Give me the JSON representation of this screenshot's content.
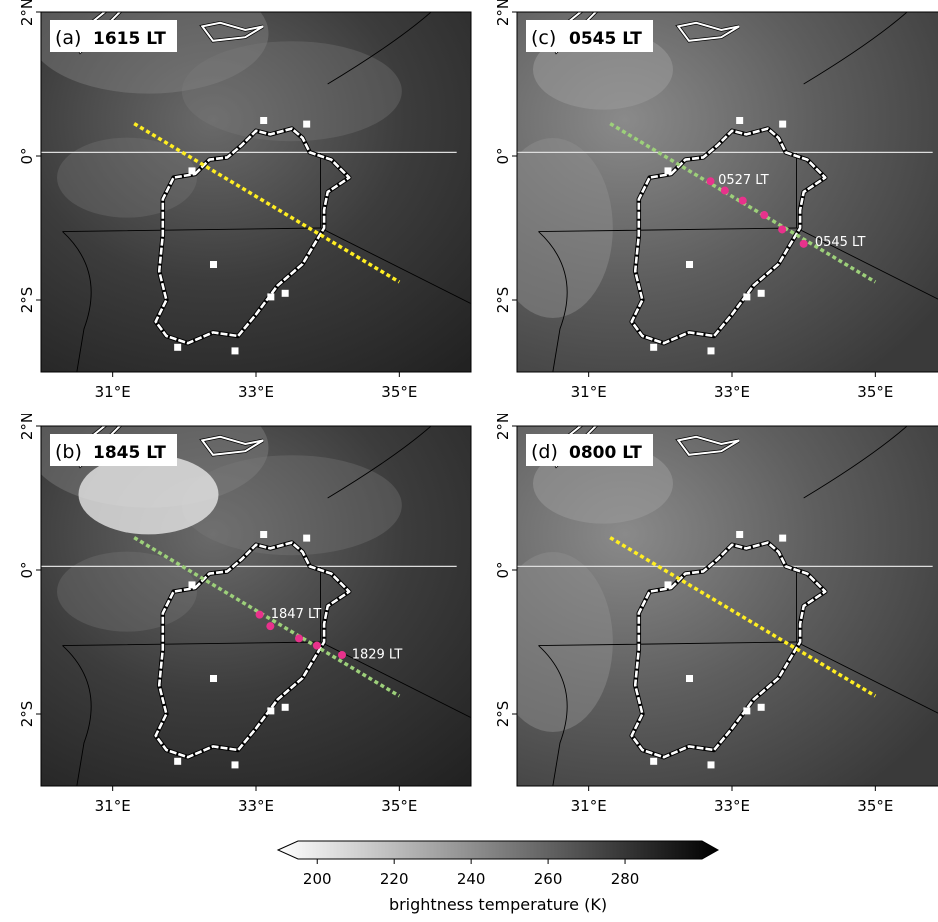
{
  "panels": [
    {
      "id": "a",
      "letter": "(a)",
      "time": "1615 LT",
      "track_color": "#ffee22",
      "markers": [],
      "annotations": [],
      "shade": "dark"
    },
    {
      "id": "c",
      "letter": "(c)",
      "time": "0545 LT",
      "track_color": "#9dd07a",
      "markers": [
        [
          32.7,
          -0.35
        ],
        [
          32.9,
          -0.48
        ],
        [
          33.15,
          -0.62
        ],
        [
          33.45,
          -0.82
        ],
        [
          33.7,
          -1.02
        ],
        [
          34.0,
          -1.22
        ]
      ],
      "annotations": [
        {
          "text": "0527 LT",
          "lon": 32.75,
          "lat": -0.32
        },
        {
          "text": "0545 LT",
          "lon": 34.1,
          "lat": -1.18
        }
      ],
      "shade": "light"
    },
    {
      "id": "b",
      "letter": "(b)",
      "time": "1845 LT",
      "track_color": "#9dd07a",
      "markers": [
        [
          33.05,
          -0.62
        ],
        [
          33.2,
          -0.78
        ],
        [
          33.6,
          -0.95
        ],
        [
          33.85,
          -1.05
        ],
        [
          34.2,
          -1.18
        ]
      ],
      "annotations": [
        {
          "text": "1847 LT",
          "lon": 33.15,
          "lat": -0.6
        },
        {
          "text": "1829 LT",
          "lon": 34.28,
          "lat": -1.16
        }
      ],
      "shade": "dark"
    },
    {
      "id": "d",
      "letter": "(d)",
      "time": "0800 LT",
      "track_color": "#ffee22",
      "markers": [],
      "annotations": [],
      "shade": "light"
    }
  ],
  "axes": {
    "lon_ticks": [
      31,
      33,
      35
    ],
    "lon_tick_labels": [
      "31°E",
      "33°E",
      "35°E"
    ],
    "lat_ticks": [
      2,
      0,
      -2
    ],
    "lat_tick_labels": [
      "2°N",
      "0°",
      "2°S"
    ],
    "lon_range": [
      30.0,
      36.0
    ],
    "lat_range": [
      -3.0,
      2.0
    ]
  },
  "track": {
    "start": [
      31.3,
      0.45
    ],
    "end": [
      35.0,
      -1.75
    ]
  },
  "colorbar": {
    "label": "brightness temperature (K)",
    "ticks": [
      200,
      220,
      240,
      260,
      280
    ],
    "tick_labels": [
      "200",
      "220",
      "240",
      "260",
      "280"
    ],
    "range": [
      195,
      300
    ],
    "extend": "both"
  },
  "colors": {
    "marker": "#e8328c",
    "coast": "#ffffff",
    "equator": "#dddddd",
    "border": "#000000"
  }
}
